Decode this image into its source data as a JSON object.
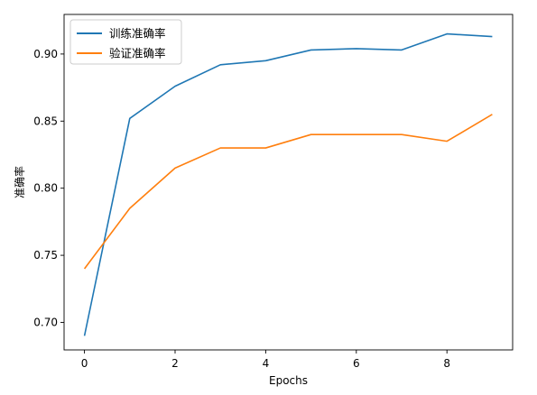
{
  "chart_data": {
    "type": "line",
    "title": "",
    "xlabel": "Epochs",
    "ylabel": "准确率",
    "xlim": [
      -0.45,
      9.45
    ],
    "ylim": [
      0.6795,
      0.9295
    ],
    "xticks": [
      0,
      2,
      4,
      6,
      8
    ],
    "xtick_labels": [
      "0",
      "2",
      "4",
      "6",
      "8"
    ],
    "yticks": [
      0.7,
      0.75,
      0.8,
      0.85,
      0.9
    ],
    "ytick_labels": [
      "0.70",
      "0.75",
      "0.80",
      "0.85",
      "0.90"
    ],
    "grid": false,
    "legend_position": "top-left",
    "x": [
      0,
      1,
      2,
      3,
      4,
      5,
      6,
      7,
      8,
      9
    ],
    "series": [
      {
        "name": "训练准确率",
        "color": "#1f77b4",
        "values": [
          0.69,
          0.852,
          0.876,
          0.892,
          0.895,
          0.903,
          0.904,
          0.903,
          0.915,
          0.913
        ]
      },
      {
        "name": "验证准确率",
        "color": "#ff7f0e",
        "values": [
          0.74,
          0.785,
          0.815,
          0.83,
          0.83,
          0.84,
          0.84,
          0.84,
          0.835,
          0.855
        ]
      }
    ]
  }
}
